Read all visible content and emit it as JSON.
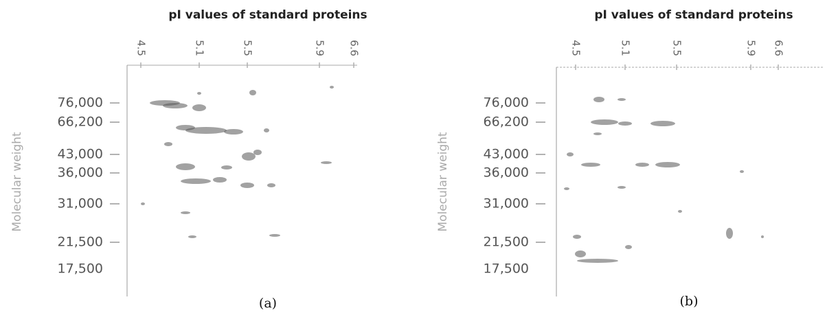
{
  "panels": [
    {
      "title": "pI values of standard proteins",
      "pi_labels": [
        "4.5",
        "5.1",
        "5.5",
        "5.9",
        "6.6"
      ],
      "y_label": "Molecular weight",
      "mw_labels": [
        "76,000",
        "66,200",
        "43,000",
        "36,000",
        "31,000",
        "21,500",
        "17,500"
      ],
      "caption": "(a)"
    },
    {
      "title": "pI values of standard proteins",
      "pi_labels": [
        "4.5",
        "5.1",
        "5.5",
        "5.9",
        "6.6"
      ],
      "y_label": "Molecular weight",
      "mw_labels": [
        "76,000",
        "66,200",
        "43,000",
        "36,000",
        "31,000",
        "21,500",
        "17,500"
      ],
      "caption": "(b)"
    }
  ]
}
